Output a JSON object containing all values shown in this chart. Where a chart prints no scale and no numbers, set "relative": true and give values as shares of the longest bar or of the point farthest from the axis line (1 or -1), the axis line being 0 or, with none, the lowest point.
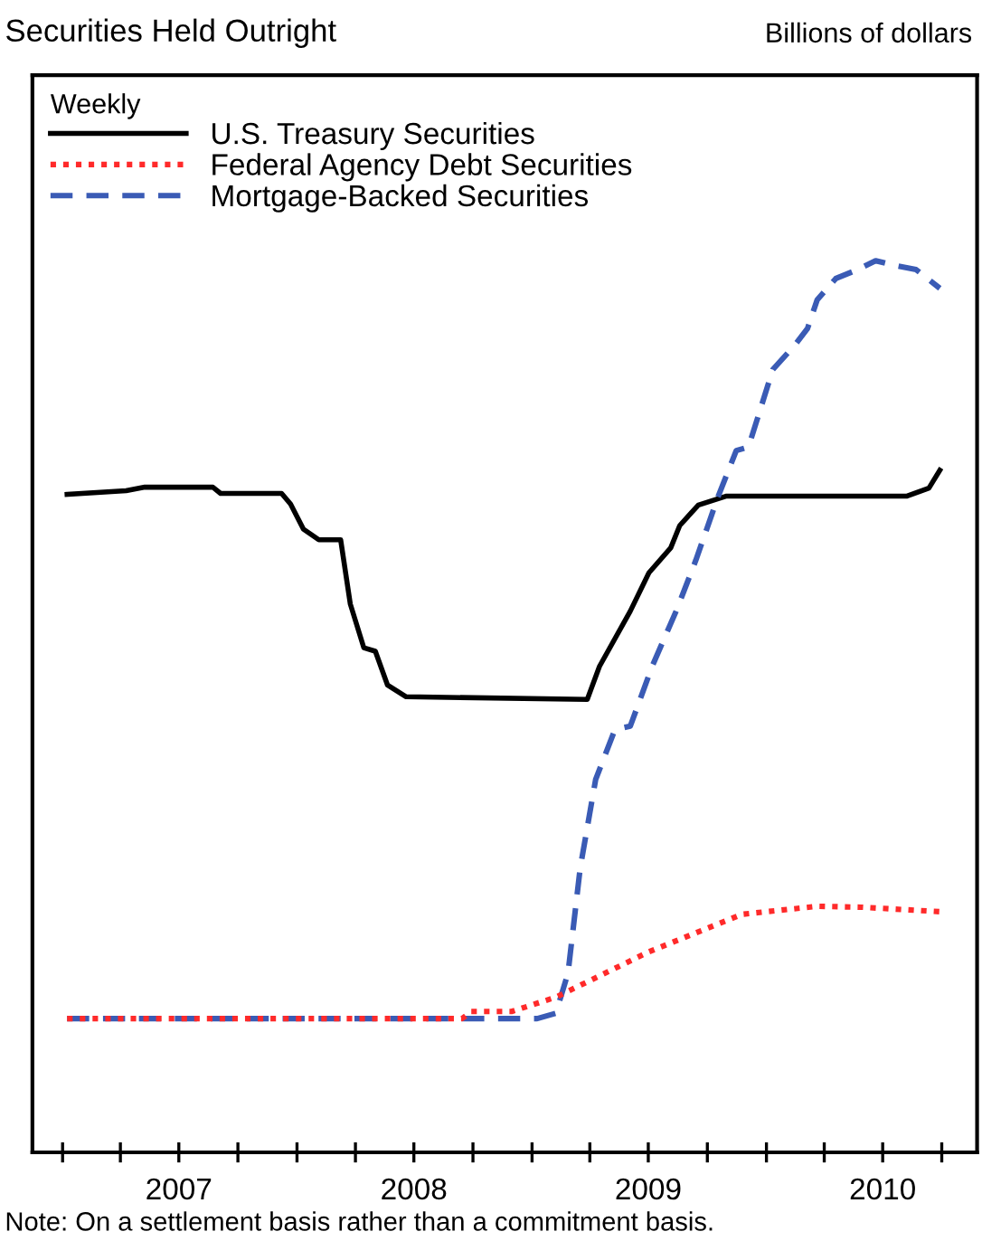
{
  "chart_data": {
    "type": "line",
    "title": "Securities Held Outright",
    "legend_title": "Weekly",
    "legend": "top left",
    "relative": true,
    "grid": false,
    "annotations": [
      "Billions of dollars",
      "Note: On a settlement basis rather than a commitment basis."
    ],
    "xlim": [
      "2006-11-15",
      "2010-11-25"
    ],
    "xticks": [
      {
        "value": "2007-07-01",
        "label": "2007"
      },
      {
        "value": "2008-07-01",
        "label": "2008"
      },
      {
        "value": "2009-07-01",
        "label": "2009"
      },
      {
        "value": "2010-07-01",
        "label": "2010"
      }
    ],
    "series": [
      {
        "name": "U.S. Treasury Securities",
        "color": "#000000",
        "line_style": "solid",
        "x": [
          "2007-01-08",
          "2007-04-10",
          "2007-05-09",
          "2007-08-23",
          "2007-09-04",
          "2007-12-08",
          "2007-12-22",
          "2008-01-11",
          "2008-02-04",
          "2008-03-09",
          "2008-03-24",
          "2008-04-14",
          "2008-05-02",
          "2008-05-21",
          "2008-06-19",
          "2009-03-28",
          "2009-04-16",
          "2009-06-03",
          "2009-07-02",
          "2009-08-05",
          "2009-08-19",
          "2009-09-17",
          "2009-10-31",
          "2010-08-08",
          "2010-09-11",
          "2010-09-28"
        ],
        "values": [
          0.738,
          0.742,
          0.746,
          0.746,
          0.739,
          0.739,
          0.727,
          0.699,
          0.687,
          0.687,
          0.615,
          0.566,
          0.562,
          0.524,
          0.511,
          0.508,
          0.545,
          0.607,
          0.65,
          0.678,
          0.703,
          0.726,
          0.736,
          0.736,
          0.745,
          0.765
        ]
      },
      {
        "name": "Federal Agency Debt Securities",
        "color": "#ff2a2a",
        "line_style": "dotted",
        "x": [
          "2007-01-08",
          "2008-09-14",
          "2008-09-28",
          "2008-11-30",
          "2009-02-07",
          "2009-07-02",
          "2009-11-24",
          "2010-03-21",
          "2010-05-28",
          "2010-09-28"
        ],
        "values": [
          0.15,
          0.15,
          0.158,
          0.158,
          0.174,
          0.225,
          0.267,
          0.276,
          0.275,
          0.27
        ]
      },
      {
        "name": "Mortgage-Backed Securities",
        "color": "#3a5bb5",
        "line_style": "dashed",
        "x": [
          "2007-01-08",
          "2009-01-09",
          "2009-02-07",
          "2009-02-26",
          "2009-03-17",
          "2009-04-10",
          "2009-05-10",
          "2009-06-03",
          "2009-07-07",
          "2009-08-14",
          "2009-09-13",
          "2009-10-17",
          "2009-11-15",
          "2009-12-04",
          "2010-01-11",
          "2010-02-15",
          "2010-03-06",
          "2010-03-21",
          "2010-04-19",
          "2010-05-23",
          "2010-06-20",
          "2010-07-24",
          "2010-08-22",
          "2010-09-28"
        ],
        "values": [
          0.15,
          0.15,
          0.156,
          0.201,
          0.319,
          0.418,
          0.474,
          0.478,
          0.545,
          0.608,
          0.664,
          0.734,
          0.787,
          0.791,
          0.878,
          0.906,
          0.924,
          0.956,
          0.98,
          0.99,
          1.0,
          0.994,
          0.99,
          0.969
        ]
      }
    ]
  }
}
